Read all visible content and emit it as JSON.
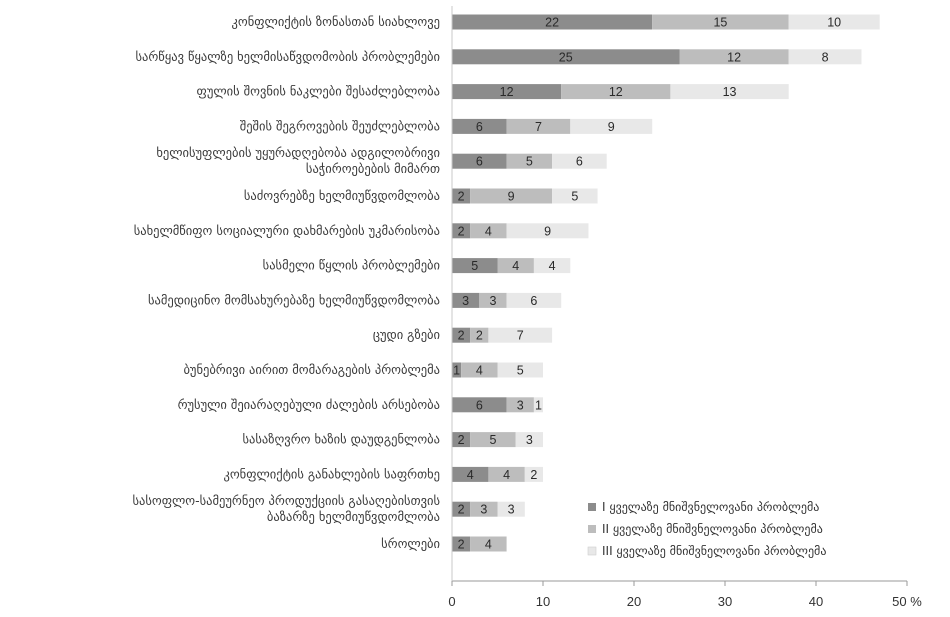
{
  "chart_data": {
    "type": "bar",
    "orientation": "horizontal",
    "stacked": true,
    "categories": [
      "კონფლიქტის ზონასთან სიახლოვე",
      "სარწყავ წყალზე ხელმისაწვდომობის პრობლემები",
      "ფულის შოვნის ნაკლები შესაძლებლობა",
      "შეშის შეგროვების შეუძლებლობა",
      "ხელისუფლების უყურადღებობა ადგილობრივი\nსაჭიროებების მიმართ",
      "საძოვრებზე ხელმიუწვდომლობა",
      "სახელმწიფო სოციალური დახმარების უკმარისობა",
      "სასმელი წყლის პრობლემები",
      "სამედიცინო მომსახურებაზე ხელმიუწვდომლობა",
      "ცუდი გზები",
      "ბუნებრივი აირით მომარაგების პრობლემა",
      "რუსული შეიარაღებული ძალების არსებობა",
      "სასაზღვრო ხაზის დაუდგენლობა",
      "კონფლიქტის განახლების საფრთხე",
      "სასოფლო-სამეურნეო პროდუქციის გასაღებისთვის\nბაზარზე ხელმიუწვდომლობა",
      "სროლები"
    ],
    "series": [
      {
        "name": "I ყველაზე მნიშვნელოვანი პრობლემა",
        "color": "#8c8c8c",
        "values": [
          22,
          25,
          12,
          6,
          6,
          2,
          2,
          5,
          3,
          2,
          1,
          6,
          2,
          4,
          2,
          2
        ]
      },
      {
        "name": "II ყველაზე მნიშვნელოვანი პრობლემა",
        "color": "#bdbdbd",
        "values": [
          15,
          12,
          12,
          7,
          5,
          9,
          4,
          4,
          3,
          2,
          4,
          3,
          5,
          4,
          3,
          4
        ]
      },
      {
        "name": "III ყველაზე მნიშვნელოვანი პრობლემა",
        "color": "#e8e8e8",
        "values": [
          10,
          8,
          13,
          9,
          6,
          5,
          9,
          4,
          6,
          7,
          5,
          1,
          3,
          2,
          3,
          0
        ]
      }
    ],
    "xlim": [
      0,
      50
    ],
    "ticks": [
      {
        "value": 0,
        "label": "0"
      },
      {
        "value": 10,
        "label": "10"
      },
      {
        "value": 20,
        "label": "20"
      },
      {
        "value": 30,
        "label": "30"
      },
      {
        "value": 40,
        "label": "40"
      },
      {
        "value": 50,
        "label": "50 %"
      }
    ],
    "legend_position": "bottom-right",
    "grid": false
  }
}
